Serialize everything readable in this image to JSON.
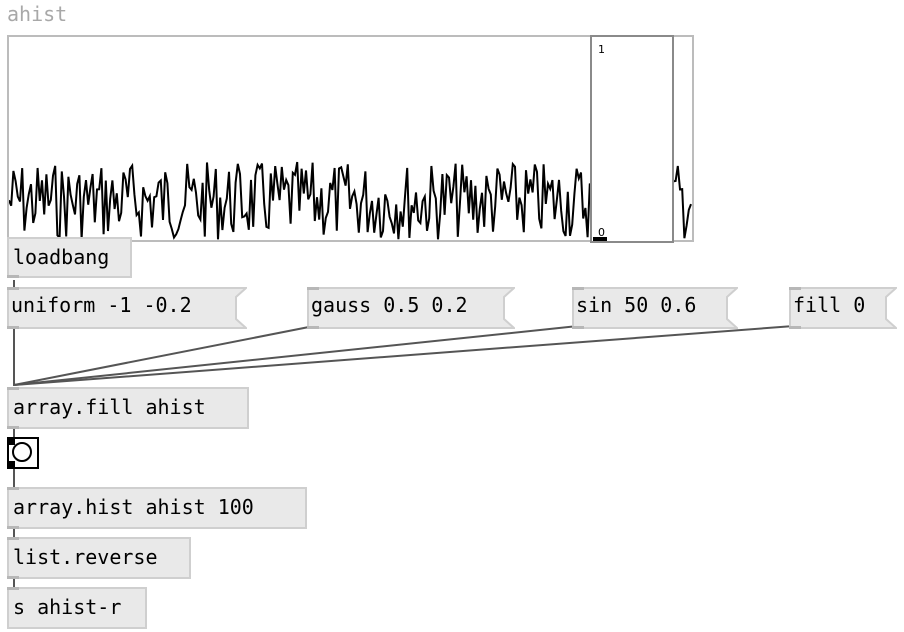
{
  "array": {
    "name": "ahist"
  },
  "slider": {
    "max_label": "1",
    "min_label": "0"
  },
  "objects": {
    "loadbang": "loadbang",
    "array_fill": "array.fill ahist",
    "array_hist": "array.hist ahist 100",
    "list_reverse": "list.reverse",
    "send": "s ahist-r"
  },
  "messages": {
    "uniform": "uniform -1 -0.2",
    "gauss": "gauss 0.5 0.2",
    "sin": "sin 50 0.6",
    "fill": "fill 0"
  },
  "colors": {
    "object_fill": "#e9e9e9",
    "object_border": "#cfcfcf",
    "cord": "#555555",
    "graph_border": "#bcbcbc"
  }
}
